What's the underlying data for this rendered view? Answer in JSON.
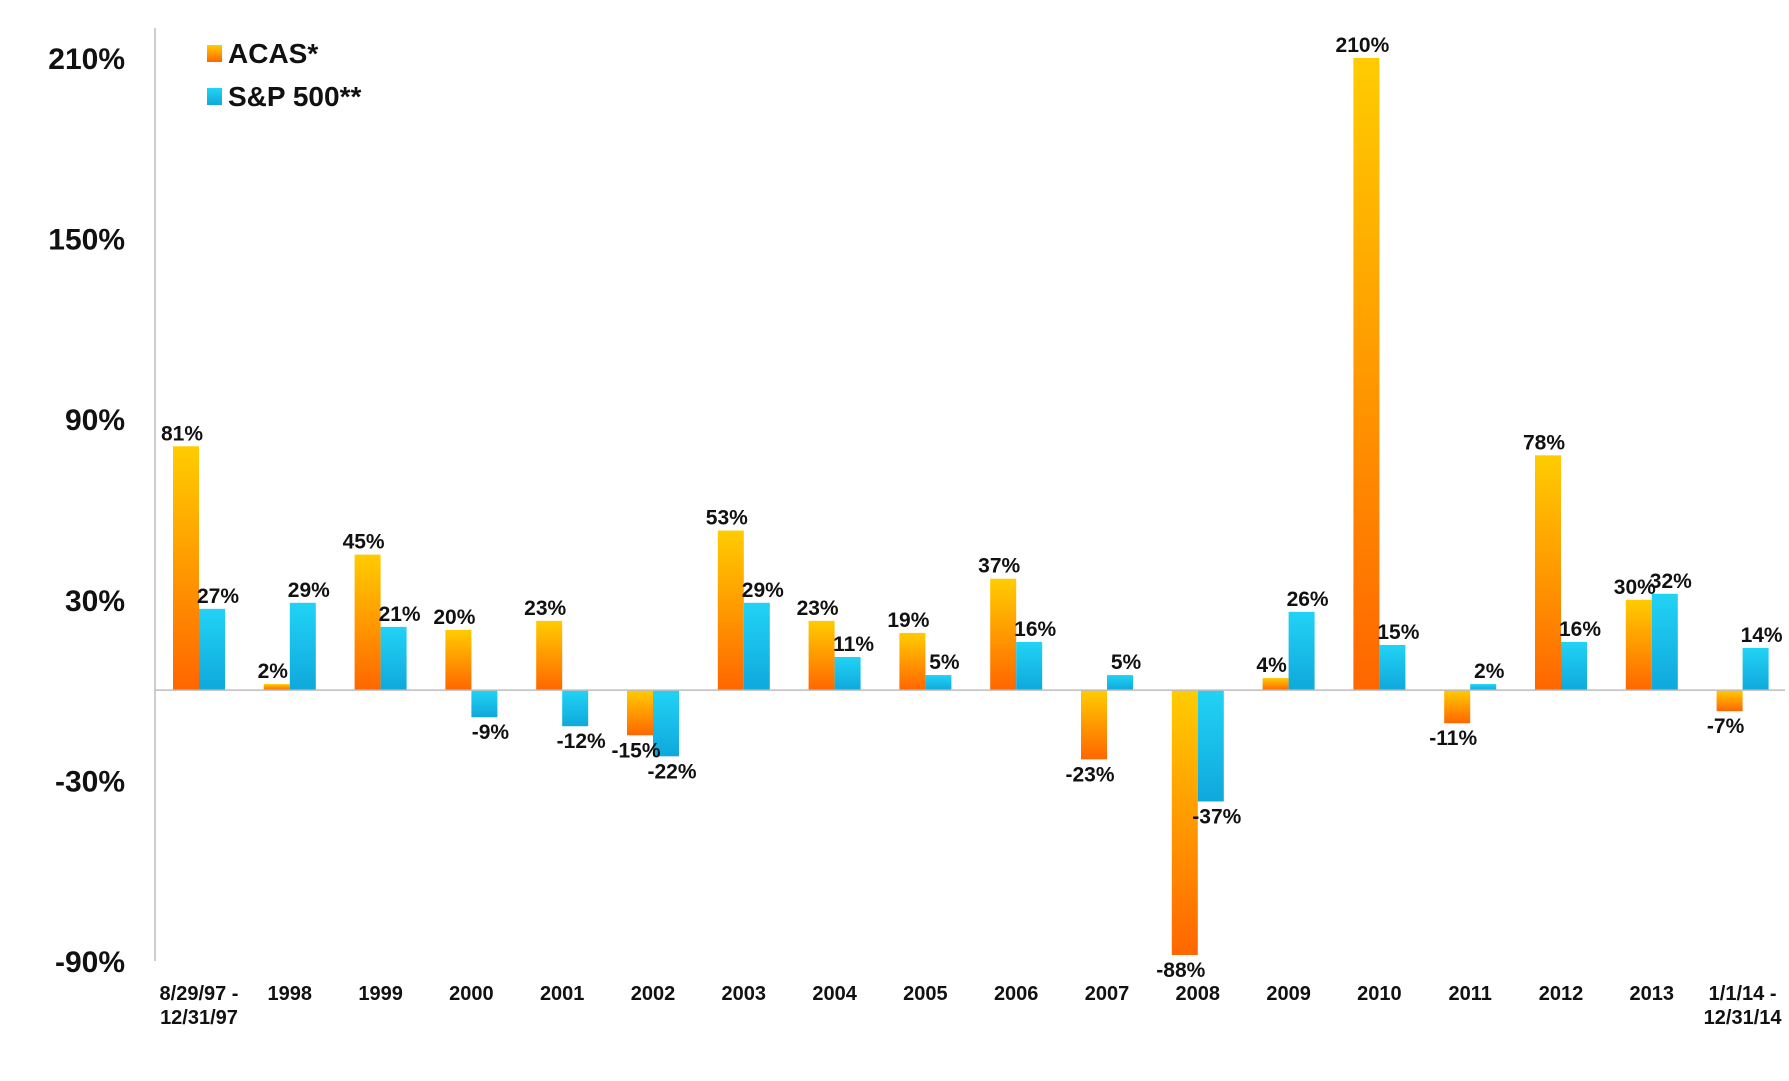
{
  "chart_data": {
    "type": "bar",
    "categories": [
      [
        "8/29/97 -",
        "12/31/97"
      ],
      [
        "1998"
      ],
      [
        "1999"
      ],
      [
        "2000"
      ],
      [
        "2001"
      ],
      [
        "2002"
      ],
      [
        "2003"
      ],
      [
        "2004"
      ],
      [
        "2005"
      ],
      [
        "2006"
      ],
      [
        "2007"
      ],
      [
        "2008"
      ],
      [
        "2009"
      ],
      [
        "2010"
      ],
      [
        "2011"
      ],
      [
        "2012"
      ],
      [
        "2013"
      ],
      [
        "1/1/14 -",
        "12/31/14"
      ]
    ],
    "series": [
      {
        "name": "ACAS*",
        "values": [
          81,
          2,
          45,
          20,
          23,
          -15,
          53,
          23,
          19,
          37,
          -23,
          -88,
          4,
          210,
          -11,
          78,
          30,
          -7
        ],
        "labels": [
          "81%",
          "2%",
          "45%",
          "20%",
          "23%",
          "-15%",
          "53%",
          "23%",
          "19%",
          "37%",
          "-23%",
          "-88%",
          "4%",
          "210%",
          "-11%",
          "78%",
          "30%",
          "-7%"
        ],
        "color_top": "#ffcc00",
        "color_bottom": "#ff6600"
      },
      {
        "name": "S&P 500**",
        "values": [
          27,
          29,
          21,
          -9,
          -12,
          -22,
          29,
          11,
          5,
          16,
          5,
          -37,
          26,
          15,
          2,
          16,
          32,
          14
        ],
        "labels": [
          "27%",
          "29%",
          "21%",
          "-9%",
          "-12%",
          "-22%",
          "29%",
          "11%",
          "5%",
          "16%",
          "5%",
          "-37%",
          "26%",
          "15%",
          "2%",
          "16%",
          "32%",
          "14%"
        ],
        "color_top": "#22d3f5",
        "color_bottom": "#0fa8dc"
      }
    ],
    "yticks": [
      -90,
      -30,
      30,
      90,
      150,
      210
    ],
    "ytick_labels": [
      "-90%",
      "-30%",
      "30%",
      "90%",
      "150%",
      "210%"
    ],
    "ylim": [
      -90,
      210
    ],
    "grid": false,
    "legend_position": "top-left"
  }
}
